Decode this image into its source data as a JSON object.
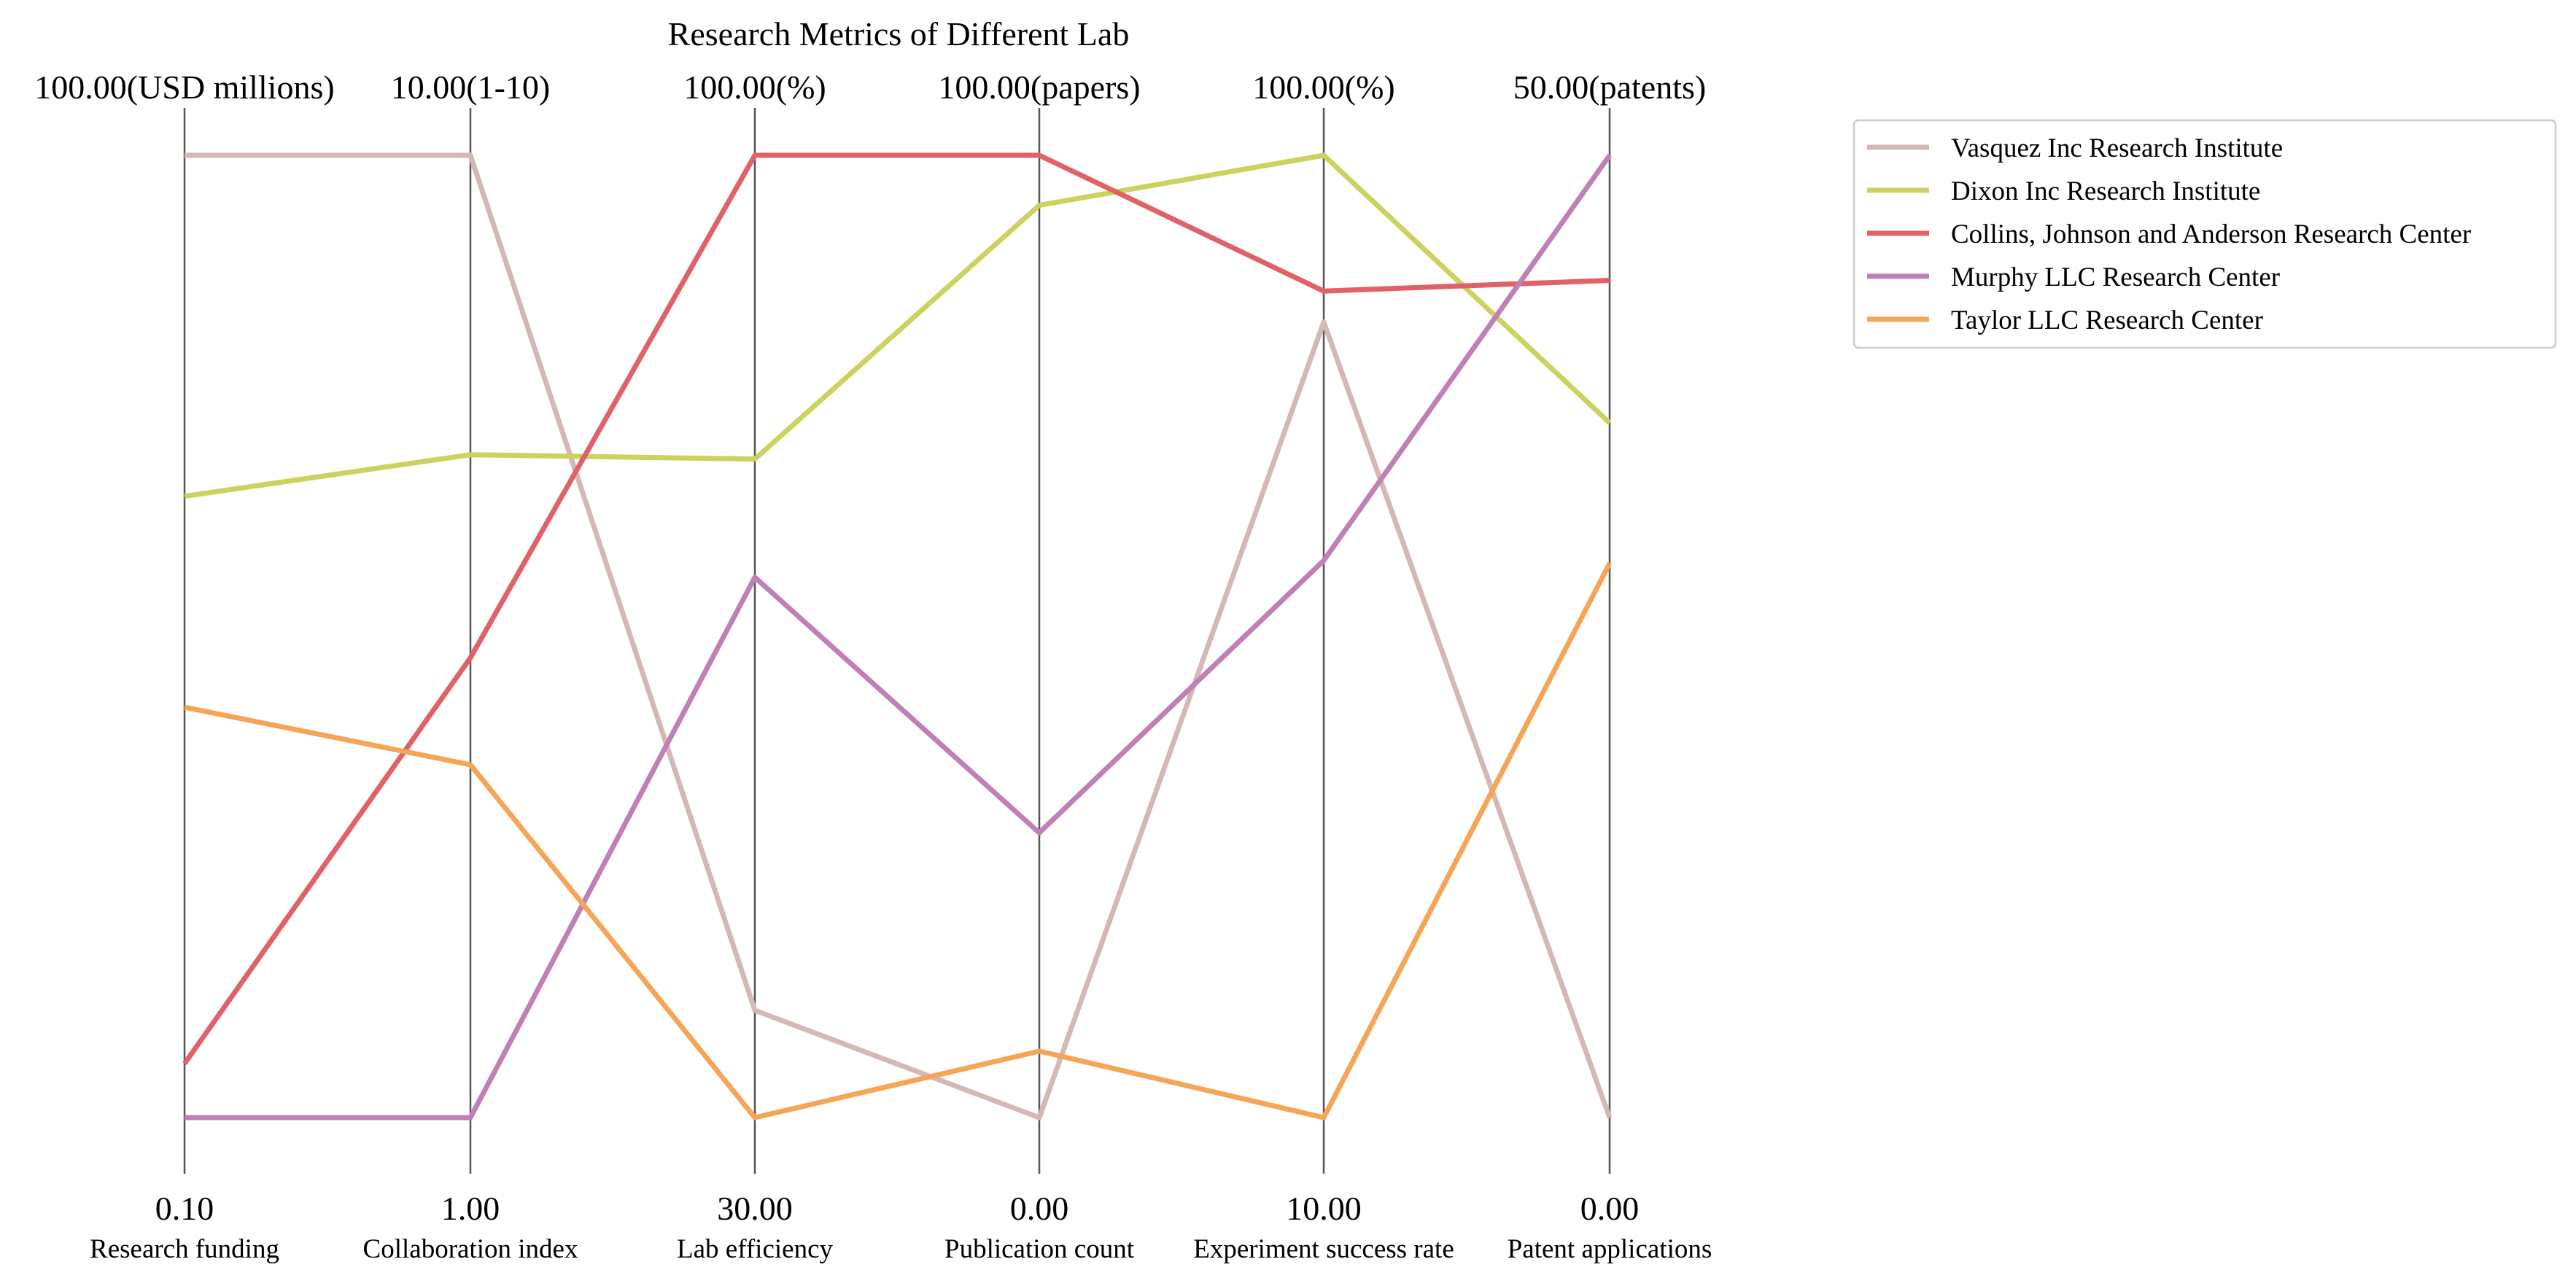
{
  "chart_data": {
    "type": "parallel-coordinates",
    "title": "Research Metrics of Different Lab",
    "legend_position": "outside-top-right",
    "grid": false,
    "axes": [
      {
        "name": "Research funding",
        "min": 0.1,
        "max": 100,
        "min_label": "0.10",
        "max_label": "100.00(USD millions)"
      },
      {
        "name": "Collaboration index",
        "min": 1,
        "max": 10,
        "min_label": "1.00",
        "max_label": "10.00(1-10)"
      },
      {
        "name": "Lab efficiency",
        "min": 30,
        "max": 100,
        "min_label": "30.00",
        "max_label": "100.00(%)"
      },
      {
        "name": "Publication count",
        "min": 0,
        "max": 100,
        "min_label": "0.00",
        "max_label": "100.00(papers)"
      },
      {
        "name": "Experiment success rate",
        "min": 10,
        "max": 100,
        "min_label": "10.00",
        "max_label": "100.00(%)"
      },
      {
        "name": "Patent applications",
        "min": 0,
        "max": 50,
        "min_label": "0.00",
        "max_label": "50.00(patents)"
      }
    ],
    "series": [
      {
        "name": "Vasquez Inc  Research Institute",
        "color": "#d4b8b3",
        "values": [
          100,
          10,
          37.8,
          0,
          84.4,
          0
        ]
      },
      {
        "name": "Dixon Inc  Research Institute",
        "color": "#cdd15e",
        "values": [
          64.6,
          7.2,
          77.9,
          94.8,
          100,
          36.1
        ]
      },
      {
        "name": "Collins, Johnson and Anderson  Research Center",
        "color": "#e06166",
        "values": [
          5.7,
          5.3,
          100,
          100,
          87.3,
          43.5
        ]
      },
      {
        "name": "Murphy LLC  Research Center",
        "color": "#c17fb8",
        "values": [
          0.1,
          1,
          69.3,
          29.6,
          62.1,
          50
        ]
      },
      {
        "name": "Taylor LLC  Research Center",
        "color": "#f6a556",
        "values": [
          42.7,
          4.3,
          30,
          6.9,
          10,
          28.8
        ]
      }
    ]
  }
}
